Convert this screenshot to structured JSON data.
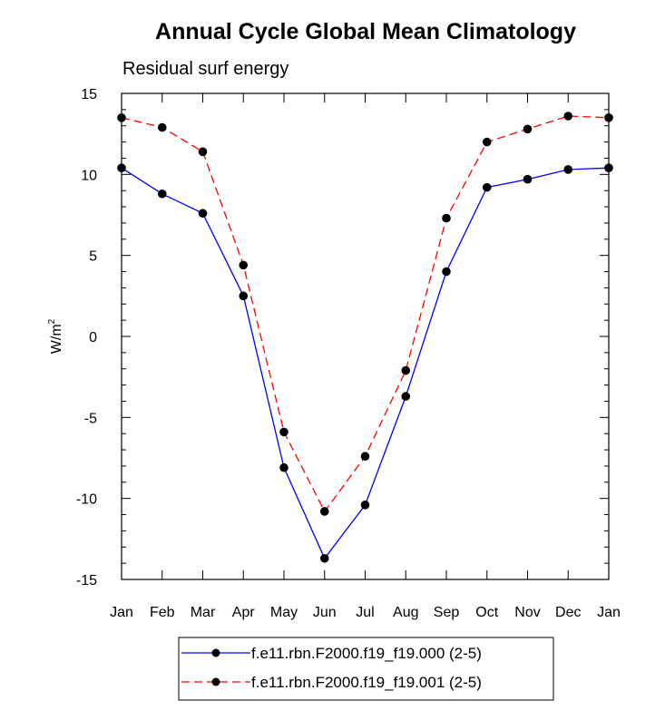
{
  "chart_data": {
    "type": "line",
    "title": "Annual Cycle Global Mean Climatology",
    "subtitle": "Residual surf energy",
    "ylabel": "W/m",
    "ylabel_superscript": "2",
    "xlabel": "",
    "categories": [
      "Jan",
      "Feb",
      "Mar",
      "Apr",
      "May",
      "Jun",
      "Jul",
      "Aug",
      "Sep",
      "Oct",
      "Nov",
      "Dec",
      "Jan"
    ],
    "ylim": [
      -15,
      15
    ],
    "yticks": [
      15,
      10,
      5,
      0,
      -5,
      -10,
      -15
    ],
    "ytick_labels": [
      "15",
      "10",
      "5",
      "0",
      "-5",
      "-10",
      "-15"
    ],
    "legend_position": "bottom",
    "series": [
      {
        "name": "f.e11.rbn.F2000.f19_f19.000 (2-5)",
        "color": "#0000ff",
        "dash": "solid",
        "values": [
          10.4,
          8.8,
          7.6,
          2.5,
          -8.1,
          -13.7,
          -10.4,
          -3.7,
          4.0,
          9.2,
          9.7,
          10.3,
          10.4
        ]
      },
      {
        "name": "f.e11.rbn.F2000.f19_f19.001 (2-5)",
        "color": "#ff0000",
        "dash": "dashed",
        "values": [
          13.5,
          12.9,
          11.4,
          4.4,
          -5.9,
          -10.8,
          -7.4,
          -2.1,
          7.3,
          12.0,
          12.8,
          13.6,
          13.5
        ]
      }
    ]
  }
}
